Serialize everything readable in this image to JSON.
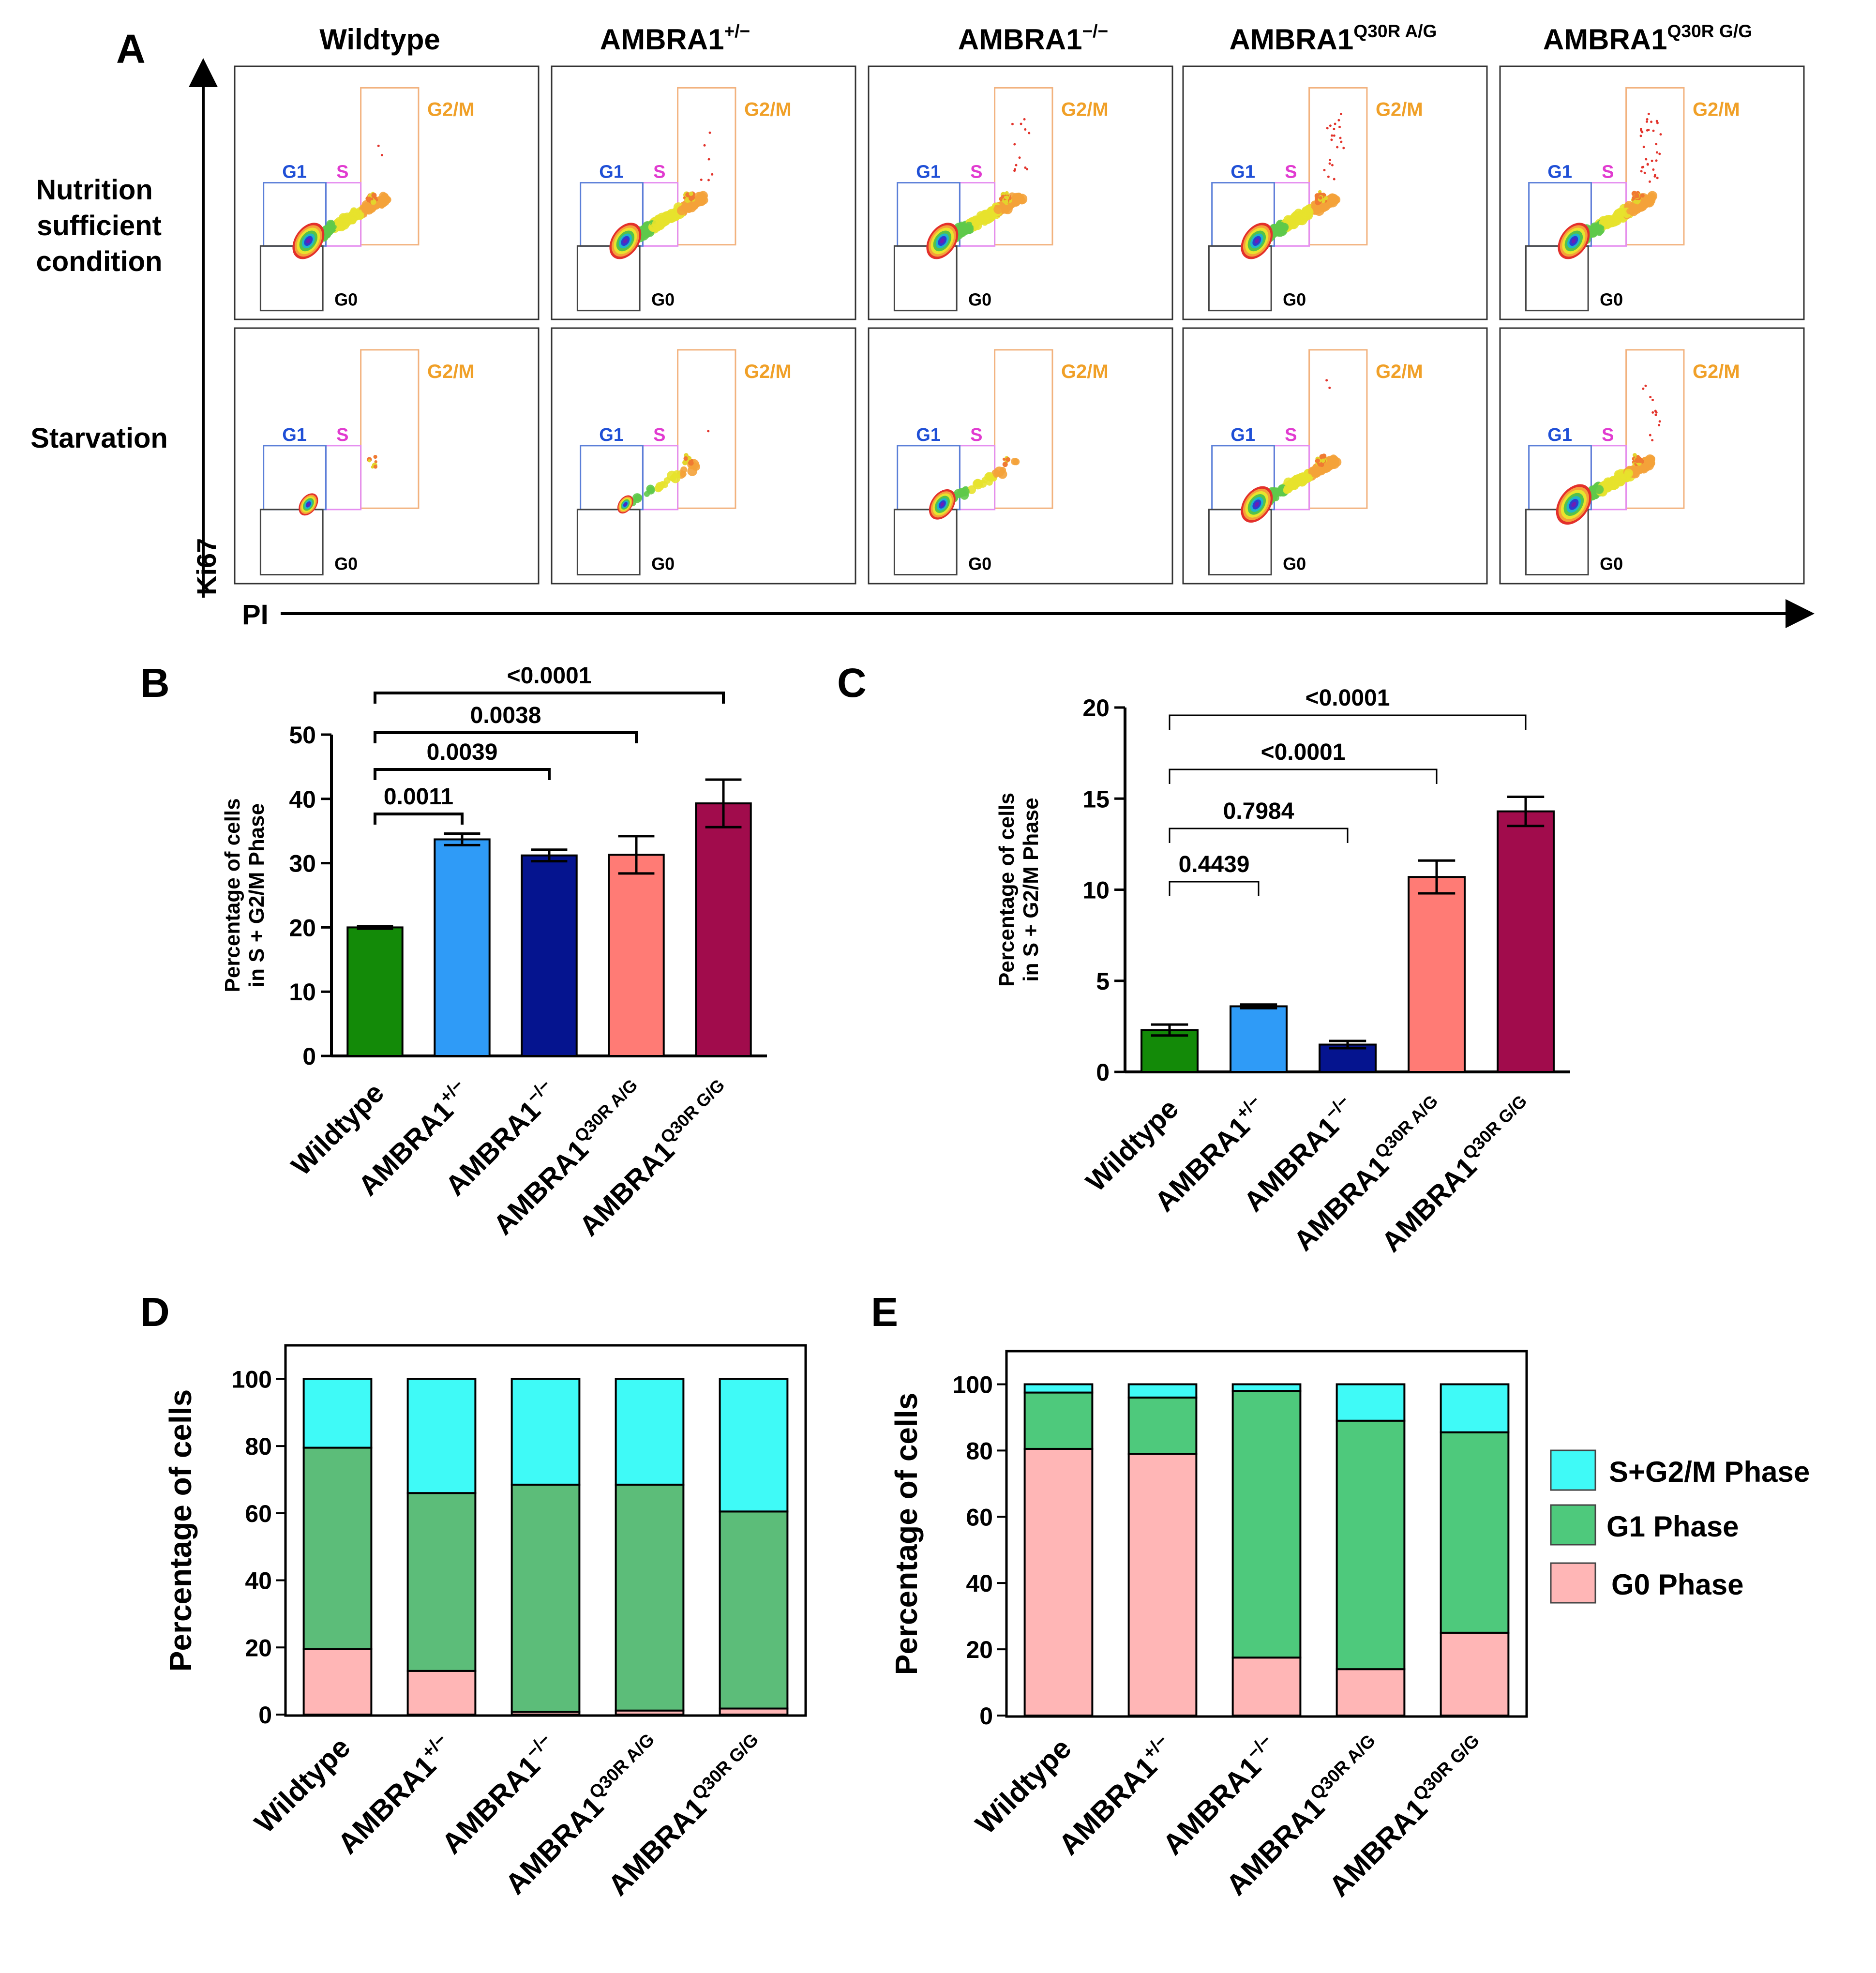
{
  "panels": {
    "A": {
      "label": "A",
      "columns": [
        {
          "base": "Wildtype",
          "sup": ""
        },
        {
          "base": "AMBRA1",
          "sup": "+/−"
        },
        {
          "base": "AMBRA1",
          "sup": "−/−"
        },
        {
          "base": "AMBRA1",
          "sup": "Q30R A/G"
        },
        {
          "base": "AMBRA1",
          "sup": "Q30R G/G"
        }
      ],
      "rows": [
        {
          "lines": [
            "Nutrition",
            "sufficient",
            "condition"
          ]
        },
        {
          "lines": [
            "Starvation"
          ]
        }
      ],
      "gates": {
        "g1": "G1",
        "s": "S",
        "g2m": "G2/M",
        "g0": "G0"
      },
      "axis_y": "Ki67",
      "axis_x": "PI",
      "colors": {
        "g1": "#1f4fd6",
        "s": "#e13bd0",
        "g2m": "#f0a028",
        "g0": "#000000",
        "box_g2m": "#f2b27e",
        "box_s": "#e58ef0",
        "box_g1": "#5b7fd8"
      },
      "populations": [
        [
          {
            "g1": 0.9,
            "tail": 0.75,
            "g2m": 0.35,
            "spray": 0.05
          },
          {
            "g1": 0.9,
            "tail": 1.0,
            "g2m": 0.6,
            "spray": 0.15
          },
          {
            "g1": 0.9,
            "tail": 0.95,
            "g2m": 0.55,
            "spray": 0.3
          },
          {
            "g1": 0.9,
            "tail": 0.95,
            "g2m": 0.6,
            "spray": 0.5
          },
          {
            "g1": 0.9,
            "tail": 1.0,
            "g2m": 0.65,
            "spray": 0.8
          }
        ],
        [
          {
            "g1": 0.55,
            "tail": 0.0,
            "g2m": 0.12,
            "spray": 0.0
          },
          {
            "g1": 0.45,
            "tail": 0.1,
            "g2m": 0.2,
            "spray": 0.02
          },
          {
            "g1": 0.75,
            "tail": 0.1,
            "g2m": 0.12,
            "spray": 0.0
          },
          {
            "g1": 0.9,
            "tail": 0.8,
            "g2m": 0.45,
            "spray": 0.05
          },
          {
            "g1": 1.0,
            "tail": 0.95,
            "g2m": 0.55,
            "spray": 0.3
          }
        ]
      ]
    },
    "B": {
      "label": "B"
    },
    "C": {
      "label": "C"
    },
    "D": {
      "label": "D"
    },
    "E": {
      "label": "E"
    }
  },
  "legend_DE": [
    "S+G2/M Phase",
    "G1 Phase",
    "G0 Phase"
  ],
  "chart_data": [
    {
      "id": "B",
      "type": "bar",
      "title": "",
      "ylabel_lines": [
        "Percentage of cells",
        "in S + G2/M Phase"
      ],
      "xlabel": "",
      "ylim": [
        0,
        50
      ],
      "yticks": [
        0,
        10,
        20,
        30,
        40,
        50
      ],
      "categories": [
        {
          "base": "Wildtype",
          "sup": ""
        },
        {
          "base": "AMBRA1",
          "sup": "+/−"
        },
        {
          "base": "AMBRA1",
          "sup": "−/−"
        },
        {
          "base": "AMBRA1",
          "sup": "Q30R A/G"
        },
        {
          "base": "AMBRA1",
          "sup": "Q30R G/G"
        }
      ],
      "values": [
        20.0,
        33.7,
        31.2,
        31.3,
        39.3
      ],
      "errors": [
        0.2,
        0.9,
        0.9,
        2.9,
        3.7
      ],
      "colors": [
        "#138a08",
        "#2f9bf7",
        "#05148f",
        "#ff7b75",
        "#a10c4c"
      ],
      "comparisons": [
        {
          "a": 0,
          "b": 1,
          "label": "0.0011"
        },
        {
          "a": 0,
          "b": 2,
          "label": "0.0039"
        },
        {
          "a": 0,
          "b": 3,
          "label": "0.0038"
        },
        {
          "a": 0,
          "b": 4,
          "label": "<0.0001"
        }
      ]
    },
    {
      "id": "C",
      "type": "bar",
      "title": "",
      "ylabel_lines": [
        "Percentage of cells",
        "in S + G2/M Phase"
      ],
      "xlabel": "",
      "ylim": [
        0,
        20
      ],
      "yticks": [
        0,
        5,
        10,
        15,
        20
      ],
      "categories": [
        {
          "base": "Wildtype",
          "sup": ""
        },
        {
          "base": "AMBRA1",
          "sup": "+/−"
        },
        {
          "base": "AMBRA1",
          "sup": "−/−"
        },
        {
          "base": "AMBRA1",
          "sup": "Q30R A/G"
        },
        {
          "base": "AMBRA1",
          "sup": "Q30R G/G"
        }
      ],
      "values": [
        2.3,
        3.6,
        1.5,
        10.7,
        14.3
      ],
      "errors": [
        0.3,
        0.1,
        0.2,
        0.9,
        0.8
      ],
      "colors": [
        "#138a08",
        "#2f9bf7",
        "#05148f",
        "#ff7b75",
        "#a10c4c"
      ],
      "comparisons": [
        {
          "a": 0,
          "b": 1,
          "label": "0.4439"
        },
        {
          "a": 0,
          "b": 2,
          "label": "0.7984"
        },
        {
          "a": 0,
          "b": 3,
          "label": "<0.0001"
        },
        {
          "a": 0,
          "b": 4,
          "label": "<0.0001"
        }
      ]
    },
    {
      "id": "D",
      "type": "bar",
      "stacked": true,
      "title": "",
      "ylabel": "Percentage of cells",
      "xlabel": "",
      "ylim": [
        0,
        110
      ],
      "yticks": [
        0,
        20,
        40,
        60,
        80,
        100
      ],
      "categories": [
        {
          "base": "Wildtype",
          "sup": ""
        },
        {
          "base": "AMBRA1",
          "sup": "+/−"
        },
        {
          "base": "AMBRA1",
          "sup": "−/−"
        },
        {
          "base": "AMBRA1",
          "sup": "Q30R A/G"
        },
        {
          "base": "AMBRA1",
          "sup": "Q30R G/G"
        }
      ],
      "series": [
        {
          "name": "G0 Phase",
          "color": "#ffb6b6",
          "values": [
            19.5,
            13.0,
            0.8,
            1.2,
            1.8
          ]
        },
        {
          "name": "G1 Phase",
          "color": "#5cbd79",
          "values": [
            60.0,
            53.0,
            67.7,
            67.3,
            58.7
          ]
        },
        {
          "name": "S+G2/M Phase",
          "color": "#3ffaf7",
          "values": [
            20.5,
            34.0,
            31.5,
            31.5,
            39.5
          ]
        }
      ]
    },
    {
      "id": "E",
      "type": "bar",
      "stacked": true,
      "title": "",
      "ylabel": "Percentage of cells",
      "xlabel": "",
      "ylim": [
        0,
        110
      ],
      "yticks": [
        0,
        20,
        40,
        60,
        80,
        100
      ],
      "categories": [
        {
          "base": "Wildtype",
          "sup": ""
        },
        {
          "base": "AMBRA1",
          "sup": "+/−"
        },
        {
          "base": "AMBRA1",
          "sup": "−/−"
        },
        {
          "base": "AMBRA1",
          "sup": "Q30R A/G"
        },
        {
          "base": "AMBRA1",
          "sup": "Q30R G/G"
        }
      ],
      "series": [
        {
          "name": "G0 Phase",
          "color": "#ffb6b6",
          "values": [
            80.5,
            79.0,
            17.5,
            14.0,
            25.0
          ]
        },
        {
          "name": "G1 Phase",
          "color": "#4ec97c",
          "values": [
            17.0,
            17.0,
            80.5,
            75.0,
            60.5
          ]
        },
        {
          "name": "S+G2/M Phase",
          "color": "#3ffaf7",
          "values": [
            2.5,
            4.0,
            2.0,
            11.0,
            14.5
          ]
        }
      ]
    }
  ]
}
